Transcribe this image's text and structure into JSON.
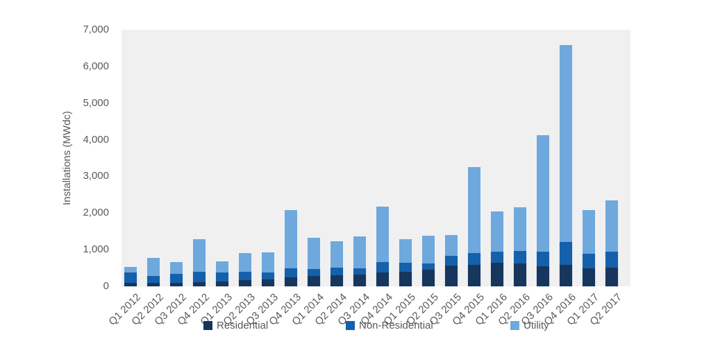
{
  "chart_data": {
    "type": "bar",
    "stacked": true,
    "title": "",
    "ylabel": "Installations (MWdc)",
    "xlabel": "",
    "ylim": [
      0,
      7000
    ],
    "ytick_labels": [
      "0",
      "1,000",
      "2,000",
      "3,000",
      "4,000",
      "5,000",
      "6,000",
      "7,000"
    ],
    "grid": false,
    "legend_position": "bottom",
    "plot_background": "#f0f0f0",
    "categories": [
      "Q1 2012",
      "Q2 2012",
      "Q3 2012",
      "Q4 2012",
      "Q1 2013",
      "Q2 2013",
      "Q3 2013",
      "Q4 2013",
      "Q1 2014",
      "Q2 2014",
      "Q3 2014",
      "Q4 2014",
      "Q1 2015",
      "Q2 2015",
      "Q3 2015",
      "Q4 2015",
      "Q1 2016",
      "Q2 2016",
      "Q3 2016",
      "Q4 2016",
      "Q1 2017",
      "Q2 2017"
    ],
    "series": [
      {
        "name": "Residential",
        "color": "#17365d",
        "values": [
          95,
          90,
          90,
          110,
          130,
          175,
          195,
          250,
          280,
          310,
          325,
          370,
          390,
          450,
          560,
          590,
          640,
          625,
          545,
          590,
          485,
          510
        ]
      },
      {
        "name": "Non-Residential",
        "color": "#1560ab",
        "values": [
          290,
          200,
          250,
          295,
          240,
          215,
          190,
          250,
          190,
          200,
          170,
          285,
          245,
          175,
          265,
          315,
          315,
          345,
          410,
          630,
          405,
          430
        ]
      },
      {
        "name": "Utility",
        "color": "#6fa8dc",
        "values": [
          145,
          490,
          315,
          880,
          315,
          520,
          535,
          1575,
          850,
          725,
          865,
          1515,
          660,
          755,
          570,
          2350,
          1090,
          1185,
          3170,
          5365,
          1195,
          1400
        ]
      }
    ]
  }
}
